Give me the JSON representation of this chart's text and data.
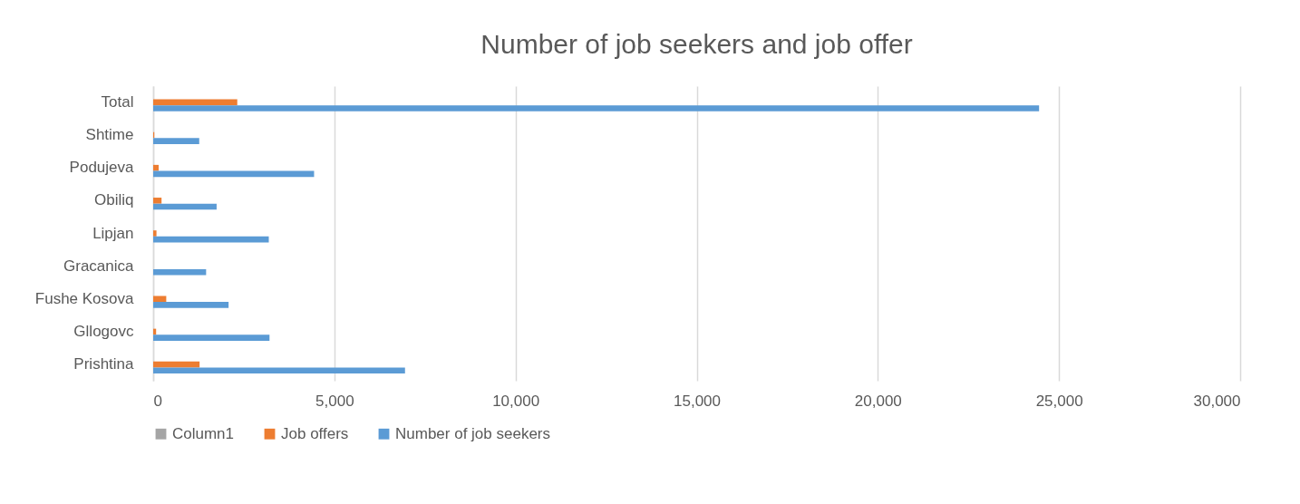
{
  "chart_data": {
    "type": "bar",
    "orientation": "horizontal",
    "title": "Number of job seekers and job offer",
    "categories": [
      "Total",
      "Shtime",
      "Podujeva",
      "Obiliq",
      "Lipjan",
      "Gracanica",
      "Fushe Kosova",
      "Gllogovc",
      "Prishtina"
    ],
    "series": [
      {
        "name": "Column1",
        "color": "#a5a5a5",
        "values": [
          null,
          null,
          null,
          null,
          null,
          null,
          null,
          null,
          null
        ]
      },
      {
        "name": "Job offers",
        "color": "#ed7d31",
        "values": [
          2320,
          30,
          150,
          230,
          90,
          0,
          360,
          80,
          1280
        ]
      },
      {
        "name": "Number of job seekers",
        "color": "#5b9bd5",
        "values": [
          24450,
          1270,
          4440,
          1750,
          3190,
          1460,
          2080,
          3210,
          6950
        ]
      }
    ],
    "xlim": [
      0,
      30000
    ],
    "xticks": [
      0,
      {
        "value": 5000,
        "label": "5,000"
      },
      {
        "value": 10000,
        "label": "10,000"
      },
      {
        "value": 15000,
        "label": "15,000"
      },
      {
        "value": 20000,
        "label": "20,000"
      },
      {
        "value": 25000,
        "label": "25,000"
      },
      {
        "value": 30000,
        "label": "30,000"
      }
    ],
    "grid": "x",
    "legend": "bottom"
  }
}
